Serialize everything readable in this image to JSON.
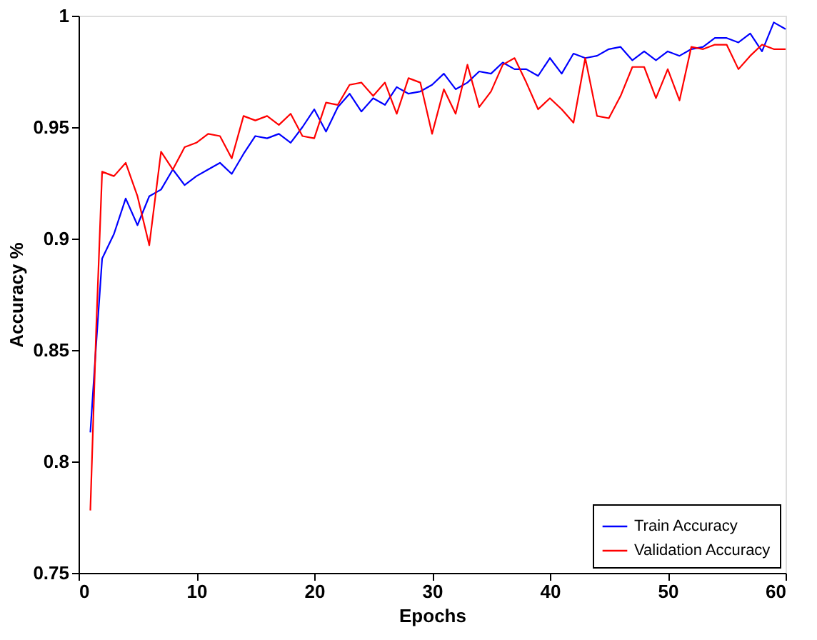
{
  "chart_data": {
    "type": "line",
    "xlabel": "Epochs",
    "ylabel": "Accuracy %",
    "xlim": [
      0,
      60
    ],
    "xticks": [
      0,
      10,
      20,
      30,
      40,
      50,
      60
    ],
    "ylim": [
      0.75,
      1
    ],
    "yticks": [
      0.75,
      0.8,
      0.85,
      0.9,
      0.95,
      1
    ],
    "x": [
      1,
      1.5,
      2,
      3,
      4,
      5,
      6,
      7,
      8,
      9,
      10,
      11,
      12,
      13,
      14,
      15,
      16,
      17,
      18,
      19,
      20,
      21,
      22,
      23,
      24,
      25,
      26,
      27,
      28,
      29,
      30,
      31,
      32,
      33,
      34,
      35,
      36,
      37,
      38,
      39,
      40,
      41,
      42,
      43,
      44,
      45,
      46,
      47,
      48,
      49,
      50,
      51,
      52,
      53,
      54,
      55,
      56,
      57,
      58,
      59,
      60
    ],
    "series": [
      {
        "name": "Train Accuracy",
        "color": "#0000ff",
        "values": [
          0.813,
          0.853,
          0.891,
          0.902,
          0.918,
          0.906,
          0.919,
          0.922,
          0.931,
          0.924,
          0.928,
          0.931,
          0.934,
          0.929,
          0.938,
          0.946,
          0.945,
          0.947,
          0.943,
          0.95,
          0.958,
          0.948,
          0.959,
          0.965,
          0.957,
          0.963,
          0.96,
          0.968,
          0.965,
          0.966,
          0.969,
          0.974,
          0.967,
          0.97,
          0.975,
          0.974,
          0.979,
          0.976,
          0.976,
          0.973,
          0.981,
          0.974,
          0.983,
          0.981,
          0.982,
          0.985,
          0.986,
          0.98,
          0.984,
          0.98,
          0.984,
          0.982,
          0.985,
          0.986,
          0.99,
          0.99,
          0.988,
          0.992,
          0.984,
          0.997,
          0.994
        ]
      },
      {
        "name": "Validation Accuracy",
        "color": "#ff0000",
        "values": [
          0.778,
          0.86,
          0.93,
          0.928,
          0.934,
          0.919,
          0.897,
          0.939,
          0.931,
          0.941,
          0.943,
          0.947,
          0.946,
          0.936,
          0.955,
          0.953,
          0.955,
          0.951,
          0.956,
          0.946,
          0.945,
          0.961,
          0.96,
          0.969,
          0.97,
          0.964,
          0.97,
          0.956,
          0.972,
          0.97,
          0.947,
          0.967,
          0.956,
          0.978,
          0.959,
          0.966,
          0.978,
          0.981,
          0.97,
          0.958,
          0.963,
          0.958,
          0.952,
          0.981,
          0.955,
          0.954,
          0.964,
          0.977,
          0.977,
          0.963,
          0.976,
          0.962,
          0.986,
          0.985,
          0.987,
          0.987,
          0.976,
          0.982,
          0.987,
          0.985,
          0.985
        ]
      }
    ],
    "legend": "bottom right",
    "grid": false
  }
}
